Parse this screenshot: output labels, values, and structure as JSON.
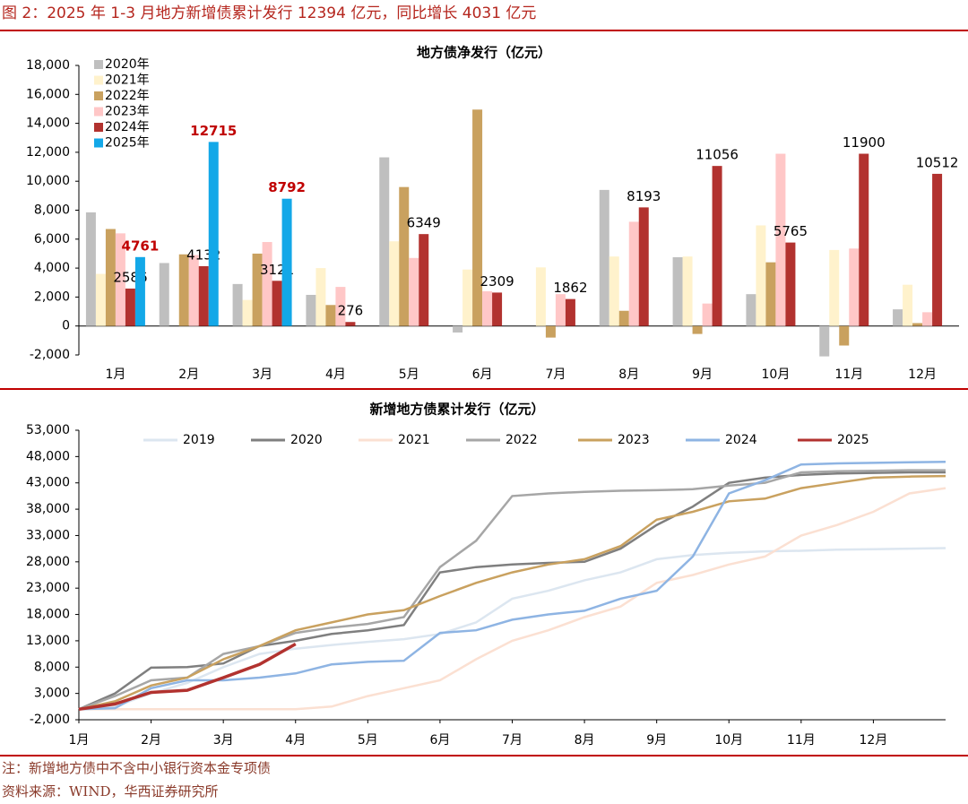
{
  "header": {
    "title": "图 2：2025 年 1-3 月地方新增债累计发行 12394 亿元，同比增长 4031 亿元"
  },
  "chart_data": [
    {
      "type": "bar",
      "title": "地方债净发行（亿元）",
      "categories": [
        "1月",
        "2月",
        "3月",
        "4月",
        "5月",
        "6月",
        "7月",
        "8月",
        "9月",
        "10月",
        "11月",
        "12月"
      ],
      "series": [
        {
          "name": "2020年",
          "color": "#bfbfbf",
          "values": [
            7850,
            4350,
            2900,
            2150,
            11650,
            -450,
            0,
            9400,
            4750,
            2200,
            -2100,
            1150
          ]
        },
        {
          "name": "2021年",
          "color": "#fff2cc",
          "values": [
            3600,
            0,
            1800,
            4000,
            5850,
            3900,
            4050,
            4800,
            4800,
            6950,
            5250,
            2850
          ]
        },
        {
          "name": "2022年",
          "color": "#c9a15f",
          "values": [
            6700,
            4950,
            5000,
            1450,
            9600,
            14950,
            -800,
            1050,
            -550,
            4400,
            -1350,
            200
          ]
        },
        {
          "name": "2023年",
          "color": "#ffc7c7",
          "values": [
            6400,
            4900,
            5800,
            2700,
            4700,
            2400,
            2200,
            7200,
            1550,
            11900,
            5350,
            950
          ]
        },
        {
          "name": "2024年",
          "color": "#b2322f",
          "show_labels": true,
          "label_color": "#000000",
          "values": [
            2586,
            4132,
            3121,
            276,
            6349,
            2309,
            1862,
            8193,
            11056,
            5765,
            11900,
            10512
          ]
        },
        {
          "name": "2025年",
          "color": "#13a8e8",
          "show_labels": true,
          "label_color": "#c00000",
          "values": [
            4761,
            12715,
            8792,
            null,
            null,
            null,
            null,
            null,
            null,
            null,
            null,
            null
          ]
        }
      ],
      "ylim": [
        -2000,
        18000
      ],
      "yticks": [
        {
          "value": -2000,
          "label": "-2,000"
        },
        0,
        {
          "value": 2000,
          "label": "2,000"
        },
        {
          "value": 4000,
          "label": "4,000"
        },
        {
          "value": 6000,
          "label": "6,000"
        },
        {
          "value": 8000,
          "label": "8,000"
        },
        {
          "value": 10000,
          "label": "10,000"
        },
        {
          "value": 12000,
          "label": "12,000"
        },
        {
          "value": 14000,
          "label": "14,000"
        },
        {
          "value": 16000,
          "label": "16,000"
        },
        {
          "value": 18000,
          "label": "18,000"
        }
      ],
      "grid": false,
      "legend": "top-left"
    },
    {
      "type": "line",
      "title": "新增地方债累计发行（亿元）",
      "categories": [
        "1月",
        null,
        "2月",
        null,
        "3月",
        null,
        "4月",
        null,
        "5月",
        null,
        "6月",
        null,
        "7月",
        null,
        "8月",
        null,
        "9月",
        null,
        "10月",
        null,
        "11月",
        null,
        "12月",
        null,
        null
      ],
      "series": [
        {
          "name": "2019",
          "color": "#dce6f0",
          "values": [
            0,
            500,
            3000,
            5000,
            8000,
            10500,
            11500,
            12200,
            12800,
            13300,
            14300,
            16500,
            21000,
            22500,
            24500,
            26000,
            28500,
            29300,
            29700,
            30000,
            30100,
            30300,
            30400,
            30500,
            30600
          ]
        },
        {
          "name": "2020",
          "color": "#7f7f7f",
          "values": [
            0,
            3000,
            7900,
            8000,
            8700,
            12000,
            13000,
            14300,
            15000,
            16000,
            26000,
            27000,
            27500,
            27800,
            28000,
            30500,
            35000,
            38500,
            43000,
            44000,
            44500,
            44800,
            44900,
            45000,
            45000
          ]
        },
        {
          "name": "2021",
          "color": "#fbe0d2",
          "values": [
            0,
            0,
            0,
            0,
            0,
            0,
            0,
            500,
            2500,
            4000,
            5500,
            9500,
            13000,
            15000,
            17500,
            19500,
            24000,
            25500,
            27500,
            29000,
            33000,
            35000,
            37500,
            41000,
            42000
          ]
        },
        {
          "name": "2022",
          "color": "#a6a6a6",
          "values": [
            0,
            2500,
            5500,
            6000,
            10500,
            12000,
            14500,
            15500,
            16200,
            17500,
            27000,
            32000,
            40500,
            41000,
            41300,
            41500,
            41600,
            41800,
            42500,
            43000,
            45000,
            45200,
            45300,
            45400,
            45400
          ]
        },
        {
          "name": "2023",
          "color": "#c9a15f",
          "values": [
            0,
            1500,
            4500,
            6000,
            9500,
            12000,
            15000,
            16500,
            18000,
            18800,
            21500,
            24000,
            26000,
            27500,
            28500,
            31000,
            36000,
            37500,
            39500,
            40000,
            42000,
            43000,
            44000,
            44200,
            44300
          ]
        },
        {
          "name": "2024",
          "color": "#8eb4e3",
          "values": [
            0,
            200,
            4000,
            5500,
            5500,
            6000,
            6800,
            8500,
            9000,
            9200,
            14500,
            15000,
            17000,
            18000,
            18700,
            21000,
            22500,
            29000,
            41000,
            43500,
            46500,
            46700,
            46800,
            46900,
            47000
          ]
        },
        {
          "name": "2025",
          "color": "#b2322f",
          "values": [
            0,
            1000,
            3200,
            3600,
            6000,
            8500,
            12394,
            null,
            null,
            null,
            null,
            null,
            null,
            null,
            null,
            null,
            null,
            null,
            null,
            null,
            null,
            null,
            null,
            null,
            null
          ]
        }
      ],
      "ylim": [
        -2000,
        53000
      ],
      "yticks": [
        {
          "value": -2000,
          "label": "-2,000"
        },
        {
          "value": 3000,
          "label": "3,000"
        },
        {
          "value": 8000,
          "label": "8,000"
        },
        {
          "value": 13000,
          "label": "13,000"
        },
        {
          "value": 18000,
          "label": "18,000"
        },
        {
          "value": 23000,
          "label": "23,000"
        },
        {
          "value": 28000,
          "label": "28,000"
        },
        {
          "value": 33000,
          "label": "33,000"
        },
        {
          "value": 38000,
          "label": "38,000"
        },
        {
          "value": 43000,
          "label": "43,000"
        },
        {
          "value": 48000,
          "label": "48,000"
        },
        {
          "value": 53000,
          "label": "53,000"
        }
      ],
      "grid": false,
      "legend": "top"
    }
  ],
  "footer": {
    "note": "注：新增地方债中不含中小银行资本金专项债",
    "source": "资料来源：WIND，华西证券研究所"
  }
}
